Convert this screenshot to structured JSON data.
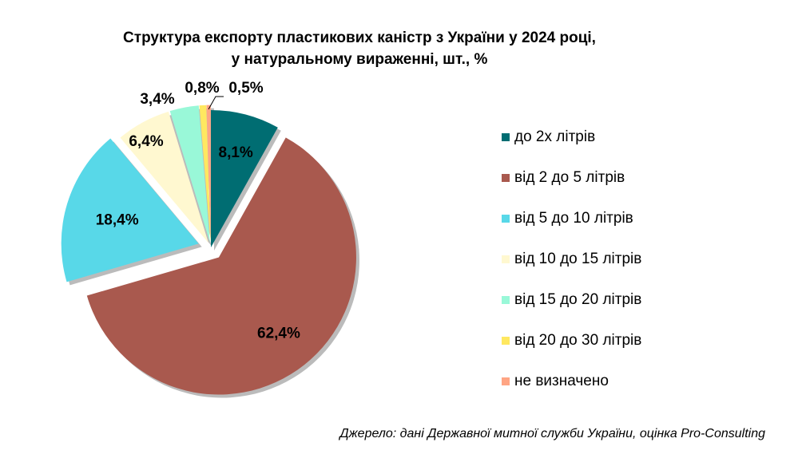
{
  "chart_data": {
    "type": "pie",
    "title": "Структура експорту пластикових каністр з України у 2024 році,",
    "subtitle": "у натуральному вираженні, шт., %",
    "categories": [
      "до 2х літрів",
      "від 2 до 5 літрів",
      "від 5 до 10 літрів",
      "від 10 до 15 літрів",
      "від 15 до 20 літрів",
      "від 20 до 30 літрів",
      "не визначено"
    ],
    "values": [
      8.1,
      62.4,
      18.4,
      6.4,
      3.4,
      0.8,
      0.5
    ],
    "labels": [
      "8,1%",
      "62,4%",
      "18,4%",
      "6,4%",
      "3,4%",
      "0,8%",
      "0,5%"
    ],
    "colors": [
      "#006D72",
      "#A9594E",
      "#58D8E8",
      "#FFF8D0",
      "#99F8D8",
      "#FFE860",
      "#FFA584"
    ],
    "explode": [
      0,
      1,
      1,
      0.4,
      0.4,
      0.4,
      0.4
    ],
    "legend_position": "right"
  },
  "source": "Джерело: дані Державної митної служби України, оцінка Pro-Consulting"
}
